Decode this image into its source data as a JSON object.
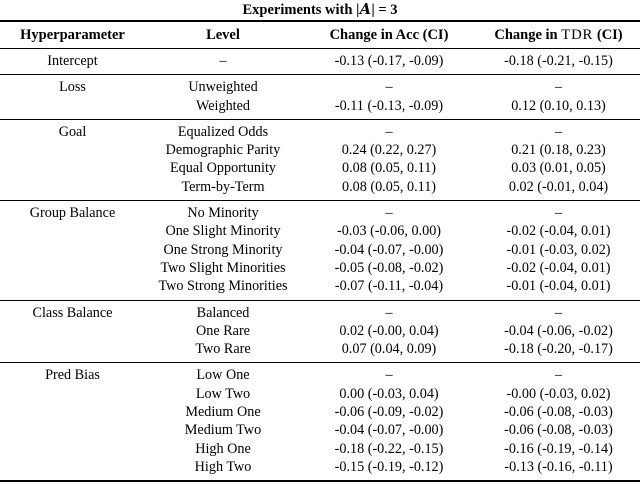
{
  "colors": {
    "text": "#000000",
    "background": "#ffffff",
    "rule": "#000000"
  },
  "title": {
    "prefix": "Experiments with ",
    "open_bar": "|",
    "set_letter": "A",
    "close_bar": "|",
    "equals": " = ",
    "value": "3"
  },
  "table": {
    "header": {
      "hyperparameter": "Hyperparameter",
      "level": "Level",
      "acc": "Change in Acc (CI)",
      "tdr_parts": {
        "prefix": "Change in ",
        "acronym": "TDR",
        "suffix": " (CI)"
      }
    },
    "sections": [
      {
        "hyperparameter": "Intercept",
        "rows": [
          {
            "level": "–",
            "acc": "-0.13 (-0.17, -0.09)",
            "tdr": "-0.18 (-0.21, -0.15)"
          }
        ]
      },
      {
        "hyperparameter": "Loss",
        "rows": [
          {
            "level": "Unweighted",
            "acc": "–",
            "tdr": "–"
          },
          {
            "level": "Weighted",
            "acc": "-0.11 (-0.13, -0.09)",
            "tdr": "0.12 (0.10, 0.13)"
          }
        ]
      },
      {
        "hyperparameter": "Goal",
        "rows": [
          {
            "level": "Equalized Odds",
            "acc": "–",
            "tdr": "–"
          },
          {
            "level": "Demographic Parity",
            "acc": "0.24 (0.22, 0.27)",
            "tdr": "0.21 (0.18, 0.23)"
          },
          {
            "level": "Equal Opportunity",
            "acc": "0.08 (0.05, 0.11)",
            "tdr": "0.03 (0.01, 0.05)"
          },
          {
            "level": "Term-by-Term",
            "acc": "0.08 (0.05, 0.11)",
            "tdr": "0.02 (-0.01, 0.04)"
          }
        ]
      },
      {
        "hyperparameter": "Group Balance",
        "rows": [
          {
            "level": "No Minority",
            "acc": "–",
            "tdr": "–"
          },
          {
            "level": "One Slight Minority",
            "acc": "-0.03 (-0.06, 0.00)",
            "tdr": "-0.02 (-0.04, 0.01)"
          },
          {
            "level": "One Strong Minority",
            "acc": "-0.04 (-0.07, -0.00)",
            "tdr": "-0.01 (-0.03, 0.02)"
          },
          {
            "level": "Two Slight Minorities",
            "acc": "-0.05 (-0.08, -0.02)",
            "tdr": "-0.02 (-0.04, 0.01)"
          },
          {
            "level": "Two Strong Minorities",
            "acc": "-0.07 (-0.11, -0.04)",
            "tdr": "-0.01 (-0.04, 0.01)"
          }
        ]
      },
      {
        "hyperparameter": "Class Balance",
        "rows": [
          {
            "level": "Balanced",
            "acc": "–",
            "tdr": "–"
          },
          {
            "level": "One Rare",
            "acc": "0.02 (-0.00, 0.04)",
            "tdr": "-0.04 (-0.06, -0.02)"
          },
          {
            "level": "Two Rare",
            "acc": "0.07 (0.04, 0.09)",
            "tdr": "-0.18 (-0.20, -0.17)"
          }
        ]
      },
      {
        "hyperparameter": "Pred Bias",
        "rows": [
          {
            "level": "Low One",
            "acc": "–",
            "tdr": "–"
          },
          {
            "level": "Low Two",
            "acc": "0.00 (-0.03, 0.04)",
            "tdr": "-0.00 (-0.03, 0.02)"
          },
          {
            "level": "Medium One",
            "acc": "-0.06 (-0.09, -0.02)",
            "tdr": "-0.06 (-0.08, -0.03)"
          },
          {
            "level": "Medium Two",
            "acc": "-0.04 (-0.07, -0.00)",
            "tdr": "-0.06 (-0.08, -0.03)"
          },
          {
            "level": "High One",
            "acc": "-0.18 (-0.22, -0.15)",
            "tdr": "-0.16 (-0.19, -0.14)"
          },
          {
            "level": "High Two",
            "acc": "-0.15 (-0.19, -0.12)",
            "tdr": "-0.13 (-0.16, -0.11)"
          }
        ]
      }
    ]
  }
}
